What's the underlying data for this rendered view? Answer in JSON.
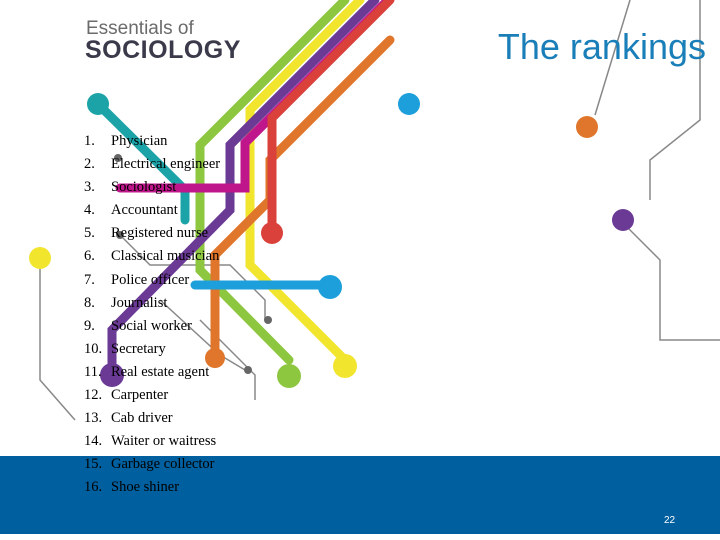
{
  "header": {
    "logo_top": "Essentials of",
    "logo_bottom": "SOCIOLOGY",
    "title": "The rankings"
  },
  "list": {
    "numbers": [
      "1.",
      "2.",
      "3.",
      "4.",
      "5.",
      "6.",
      "7.",
      "8.",
      "9.",
      "10.",
      "11.",
      "12.",
      "13.",
      "14.",
      "15.",
      "16."
    ],
    "items": [
      "Physician",
      "Electrical engineer",
      "Sociologist",
      "Accountant",
      "Registered nurse",
      "Classical musician",
      "Police officer",
      "Journalist",
      "Social worker",
      "Secretary",
      "Real estate agent",
      "Carpenter",
      "Cab driver",
      "Waiter or waitress",
      "Garbage collector",
      "Shoe shiner"
    ]
  },
  "footer": {
    "page_number": "22"
  }
}
